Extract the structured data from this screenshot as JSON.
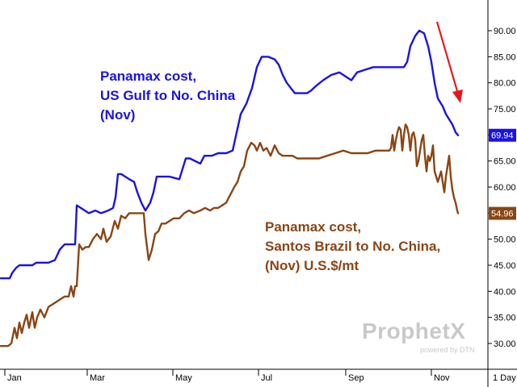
{
  "chart_data": {
    "type": "line",
    "ylim": [
      27,
      94
    ],
    "y_ticks": [
      "30.00",
      "35.00",
      "40.00",
      "45.00",
      "50.00",
      "55.00",
      "60.00",
      "65.00",
      "70.00",
      "75.00",
      "80.00",
      "85.00",
      "90.00"
    ],
    "x_ticks": [
      "Jan",
      "Mar",
      "May",
      "Jul",
      "Sep",
      "Nov"
    ],
    "period_label": "1 Day",
    "grid": false,
    "series": [
      {
        "name": "Panamax cost, US Gulf to No. China (Nov)",
        "color": "#1a12e6",
        "last_value": "69.94",
        "points": [
          [
            1,
            42.5
          ],
          [
            12,
            42.5
          ],
          [
            15,
            43.5
          ],
          [
            20,
            44.5
          ],
          [
            24,
            45
          ],
          [
            28,
            45
          ],
          [
            40,
            45
          ],
          [
            45,
            45.5
          ],
          [
            60,
            45.5
          ],
          [
            68,
            46
          ],
          [
            74,
            48
          ],
          [
            80,
            49
          ],
          [
            90,
            49
          ],
          [
            93,
            49
          ],
          [
            95,
            56.5
          ],
          [
            100,
            56
          ],
          [
            110,
            55
          ],
          [
            118,
            55.5
          ],
          [
            125,
            55
          ],
          [
            134,
            55.5
          ],
          [
            140,
            56
          ],
          [
            143,
            58
          ],
          [
            146,
            62.5
          ],
          [
            150,
            62.5
          ],
          [
            160,
            61.5
          ],
          [
            166,
            61
          ],
          [
            170,
            59
          ],
          [
            175,
            57
          ],
          [
            180,
            55.5
          ],
          [
            186,
            57
          ],
          [
            190,
            59
          ],
          [
            194,
            62
          ],
          [
            200,
            62
          ],
          [
            210,
            62
          ],
          [
            222,
            61.5
          ],
          [
            230,
            65.5
          ],
          [
            235,
            65.5
          ],
          [
            248,
            64.5
          ],
          [
            253,
            66
          ],
          [
            262,
            66
          ],
          [
            270,
            66.5
          ],
          [
            280,
            66.5
          ],
          [
            288,
            67
          ],
          [
            293,
            70.5
          ],
          [
            298,
            74
          ],
          [
            305,
            76
          ],
          [
            312,
            79
          ],
          [
            318,
            83
          ],
          [
            324,
            85
          ],
          [
            332,
            85
          ],
          [
            340,
            84.5
          ],
          [
            345,
            83.5
          ],
          [
            350,
            81.5
          ],
          [
            355,
            80
          ],
          [
            360,
            79
          ],
          [
            365,
            78
          ],
          [
            372,
            78
          ],
          [
            380,
            78
          ],
          [
            385,
            78.5
          ],
          [
            392,
            79.5
          ],
          [
            400,
            80.5
          ],
          [
            410,
            81.5
          ],
          [
            420,
            82
          ],
          [
            430,
            81
          ],
          [
            435,
            80.5
          ],
          [
            442,
            82
          ],
          [
            452,
            82.5
          ],
          [
            462,
            83
          ],
          [
            476,
            83
          ],
          [
            488,
            83
          ],
          [
            500,
            83
          ],
          [
            504,
            84
          ],
          [
            508,
            87
          ],
          [
            514,
            89
          ],
          [
            519,
            90
          ],
          [
            525,
            89.5
          ],
          [
            530,
            87
          ],
          [
            534,
            84
          ],
          [
            538,
            80
          ],
          [
            542,
            77
          ],
          [
            548,
            75.5
          ],
          [
            552,
            74
          ],
          [
            556,
            73
          ],
          [
            560,
            72
          ],
          [
            564,
            70.5
          ],
          [
            567,
            69.94
          ]
        ]
      },
      {
        "name": "Panamax cost, Santos Brazil to No. China, (Nov) U.S.$/mt",
        "color": "#8b4513",
        "last_value": "54.96",
        "points": [
          [
            1,
            29.5
          ],
          [
            5,
            29.5
          ],
          [
            10,
            29.5
          ],
          [
            14,
            30
          ],
          [
            18,
            33
          ],
          [
            21,
            31
          ],
          [
            24,
            34
          ],
          [
            27,
            32
          ],
          [
            30,
            34
          ],
          [
            33,
            35.5
          ],
          [
            36,
            33
          ],
          [
            40,
            36
          ],
          [
            43,
            33
          ],
          [
            46,
            35
          ],
          [
            50,
            36.5
          ],
          [
            55,
            35
          ],
          [
            60,
            37
          ],
          [
            65,
            37.5
          ],
          [
            70,
            38
          ],
          [
            75,
            38.5
          ],
          [
            80,
            39
          ],
          [
            85,
            39
          ],
          [
            88,
            41
          ],
          [
            91,
            39
          ],
          [
            93,
            41
          ],
          [
            95,
            41
          ],
          [
            98,
            49
          ],
          [
            102,
            48
          ],
          [
            106,
            48.5
          ],
          [
            110,
            48.5
          ],
          [
            115,
            50
          ],
          [
            120,
            51
          ],
          [
            125,
            50
          ],
          [
            128,
            52
          ],
          [
            132,
            49.5
          ],
          [
            137,
            50.5
          ],
          [
            142,
            53.5
          ],
          [
            146,
            52
          ],
          [
            150,
            54.5
          ],
          [
            155,
            54
          ],
          [
            160,
            55
          ],
          [
            165,
            55
          ],
          [
            170,
            55
          ],
          [
            175,
            55
          ],
          [
            178,
            55
          ],
          [
            180,
            51
          ],
          [
            184,
            46
          ],
          [
            188,
            48
          ],
          [
            192,
            51
          ],
          [
            196,
            51.5
          ],
          [
            200,
            53
          ],
          [
            205,
            53
          ],
          [
            210,
            53.5
          ],
          [
            215,
            54
          ],
          [
            222,
            54
          ],
          [
            228,
            55
          ],
          [
            234,
            55.5
          ],
          [
            240,
            55
          ],
          [
            248,
            55.5
          ],
          [
            254,
            56
          ],
          [
            260,
            55.5
          ],
          [
            265,
            56
          ],
          [
            270,
            56
          ],
          [
            275,
            56.5
          ],
          [
            280,
            57
          ],
          [
            285,
            58.5
          ],
          [
            290,
            60
          ],
          [
            294,
            61
          ],
          [
            298,
            63
          ],
          [
            302,
            64
          ],
          [
            306,
            67
          ],
          [
            311,
            68.5
          ],
          [
            315,
            68
          ],
          [
            318,
            67
          ],
          [
            322,
            68.5
          ],
          [
            326,
            67
          ],
          [
            330,
            67.5
          ],
          [
            335,
            66
          ],
          [
            340,
            68
          ],
          [
            345,
            66.5
          ],
          [
            350,
            66
          ],
          [
            356,
            66
          ],
          [
            362,
            66
          ],
          [
            368,
            65.5
          ],
          [
            375,
            65.5
          ],
          [
            385,
            65.5
          ],
          [
            395,
            65.5
          ],
          [
            405,
            66
          ],
          [
            415,
            66.5
          ],
          [
            425,
            67
          ],
          [
            435,
            66.5
          ],
          [
            445,
            66.5
          ],
          [
            455,
            66.5
          ],
          [
            465,
            67
          ],
          [
            475,
            67
          ],
          [
            482,
            67
          ],
          [
            484,
            67.5
          ],
          [
            486,
            70
          ],
          [
            488,
            67
          ],
          [
            490,
            69
          ],
          [
            492,
            70.5
          ],
          [
            494,
            71.5
          ],
          [
            496,
            71
          ],
          [
            498,
            67
          ],
          [
            500,
            70
          ],
          [
            502,
            72
          ],
          [
            504,
            71.5
          ],
          [
            506,
            70
          ],
          [
            508,
            67
          ],
          [
            510,
            70
          ],
          [
            512,
            70.5
          ],
          [
            514,
            69
          ],
          [
            516,
            64
          ],
          [
            518,
            65
          ],
          [
            520,
            67
          ],
          [
            522,
            69
          ],
          [
            524,
            70
          ],
          [
            526,
            66
          ],
          [
            528,
            63
          ],
          [
            530,
            66
          ],
          [
            532,
            65
          ],
          [
            534,
            66
          ],
          [
            536,
            68
          ],
          [
            538,
            63
          ],
          [
            540,
            62
          ],
          [
            542,
            61
          ],
          [
            544,
            62
          ],
          [
            546,
            63
          ],
          [
            548,
            61
          ],
          [
            550,
            59
          ],
          [
            552,
            62
          ],
          [
            554,
            64
          ],
          [
            556,
            66
          ],
          [
            558,
            62
          ],
          [
            560,
            59.5
          ],
          [
            562,
            58
          ],
          [
            564,
            57
          ],
          [
            566,
            55.5
          ],
          [
            567,
            54.96
          ]
        ]
      }
    ]
  },
  "annotations": {
    "us_gulf": [
      "Panamax cost,",
      "US Gulf to No. China",
      "(Nov)"
    ],
    "santos": [
      "Panamax cost,",
      "Santos Brazil to No. China,",
      "(Nov) U.S.$/mt"
    ]
  },
  "logo": {
    "brand": "ProphetX",
    "sub": "powered by DTN"
  },
  "colors": {
    "arrow": "#e8161a",
    "axis": "#000000"
  }
}
